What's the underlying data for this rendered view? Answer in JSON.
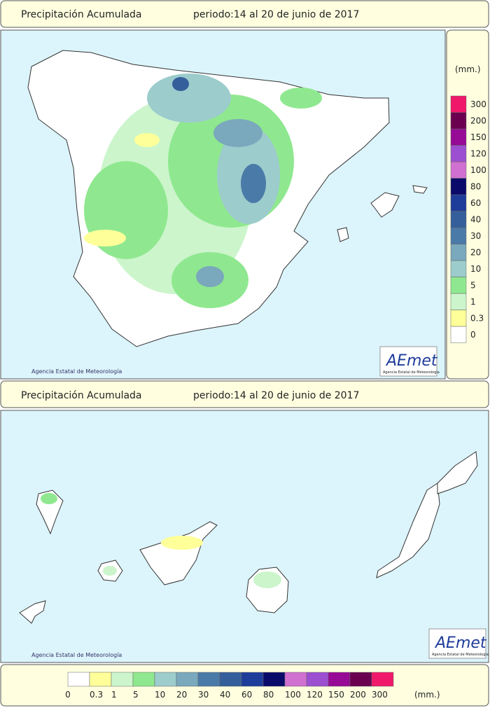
{
  "panels": [
    {
      "title": "Precipitación Acumulada",
      "period": "periodo:14 al 20 de junio de 2017",
      "credit": "Agencia Estatal de Meteorología",
      "logo": "AEmet",
      "logo_sub": "Agencia Estatal de Meteorología"
    },
    {
      "title": "Precipitación Acumulada",
      "period": "periodo:14 al 20 de junio de 2017",
      "credit": "Agencia Estatal de Meteorología",
      "logo": "AEmet",
      "logo_sub": "Agencia Estatal de Meteorología"
    }
  ],
  "legend": {
    "unit": "(mm.)",
    "items": [
      {
        "label": 0,
        "color": "#ffffff"
      },
      {
        "label": 0.3,
        "color": "#ffff99"
      },
      {
        "label": 1,
        "color": "#ccf5cc"
      },
      {
        "label": 5,
        "color": "#8fe88f"
      },
      {
        "label": 10,
        "color": "#9ccccc"
      },
      {
        "label": 20,
        "color": "#7aa8bc"
      },
      {
        "label": 30,
        "color": "#4a7aa8"
      },
      {
        "label": 40,
        "color": "#355f9a"
      },
      {
        "label": 60,
        "color": "#1e3c9a"
      },
      {
        "label": 80,
        "color": "#0a0a6a"
      },
      {
        "label": 100,
        "color": "#d070d0"
      },
      {
        "label": 120,
        "color": "#9c4fd0"
      },
      {
        "label": 150,
        "color": "#960a96"
      },
      {
        "label": 200,
        "color": "#6b0050"
      },
      {
        "label": 300,
        "color": "#f0186a"
      }
    ]
  }
}
